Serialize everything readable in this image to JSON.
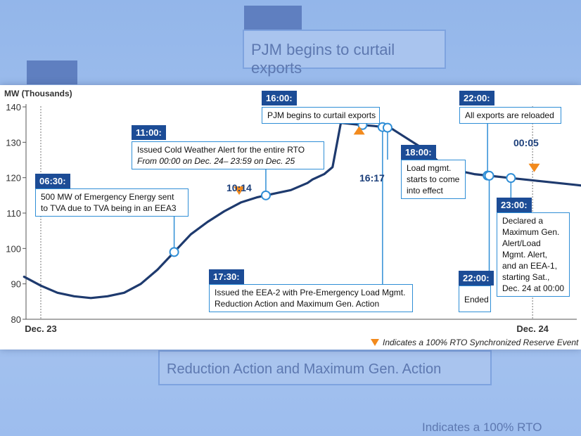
{
  "colors": {
    "line": "#1e3a6e",
    "accent_blue": "#2f8ed6",
    "tag_bg": "#1c4c96",
    "event_marker": "#f28a1d"
  },
  "chart_data": {
    "type": "line",
    "ylabel": "MW (Thousands)",
    "ylim": [
      80,
      140
    ],
    "yticks": [
      "140",
      "130",
      "120",
      "110",
      "100",
      "90",
      "80"
    ],
    "xticks": [
      "Dec. 23",
      "Dec. 24"
    ],
    "grid": false,
    "series": [
      {
        "x": [
          -1,
          0,
          1,
          2,
          3,
          4,
          5,
          6,
          7,
          8,
          9,
          10,
          11,
          12,
          13,
          14,
          15,
          16,
          16.3,
          17,
          17.5,
          18,
          19,
          20,
          21,
          22,
          23,
          24,
          25,
          26,
          27,
          28,
          29,
          30,
          31,
          32,
          33
        ],
        "values": [
          92,
          89.5,
          87.5,
          86.5,
          86,
          86.5,
          87.5,
          90,
          94,
          99,
          104,
          107.5,
          110.5,
          113,
          114.5,
          115.5,
          116.5,
          118.5,
          119.5,
          121,
          123,
          135.5,
          135,
          134.6,
          134,
          131,
          128,
          124,
          122,
          121,
          120.5,
          120,
          119.5,
          119,
          118.5,
          118,
          117.5
        ]
      }
    ],
    "event_markers": [
      "10:14",
      "16:17",
      "00:05"
    ],
    "annotations": [
      {
        "time": "06:30:",
        "lines": [
          "500 MW of Emergency Energy sent",
          "to TVA due to TVA being in an EEA3"
        ]
      },
      {
        "time": "11:00:",
        "lines": [
          "Issued Cold Weather Alert for the entire RTO",
          "From 00:00 on Dec. 24– 23:59 on Dec. 25"
        ]
      },
      {
        "time": "16:00:",
        "lines": [
          "PJM begins to curtail exports"
        ]
      },
      {
        "time": "17:30:",
        "lines": [
          "Issued the EEA-2 with Pre-Emergency Load Mgmt.",
          "Reduction Action and Maximum Gen. Action"
        ]
      },
      {
        "time": "18:00:",
        "lines": [
          "Load mgmt.",
          "starts to come",
          "into effect"
        ]
      },
      {
        "time": "22:00:",
        "lines": [
          "All exports are reloaded"
        ]
      },
      {
        "time": "22:00:",
        "lines": [
          "Ended"
        ]
      },
      {
        "time": "23:00:",
        "lines": [
          "Declared a",
          "Maximum Gen.",
          "Alert/Load",
          "Mgmt. Alert,",
          "and an EEA-1,",
          "starting Sat.,",
          "Dec. 24 at 00:00"
        ]
      }
    ],
    "legend": "Indicates a 100% RTO Synchronized Reserve Event"
  },
  "background": {
    "ghost_box_1": "PJM begins to curtail exports",
    "ghost_box_2": "Reduction Action and Maximum Gen. Action",
    "ghost_note": "Indicates a 100% RTO"
  }
}
